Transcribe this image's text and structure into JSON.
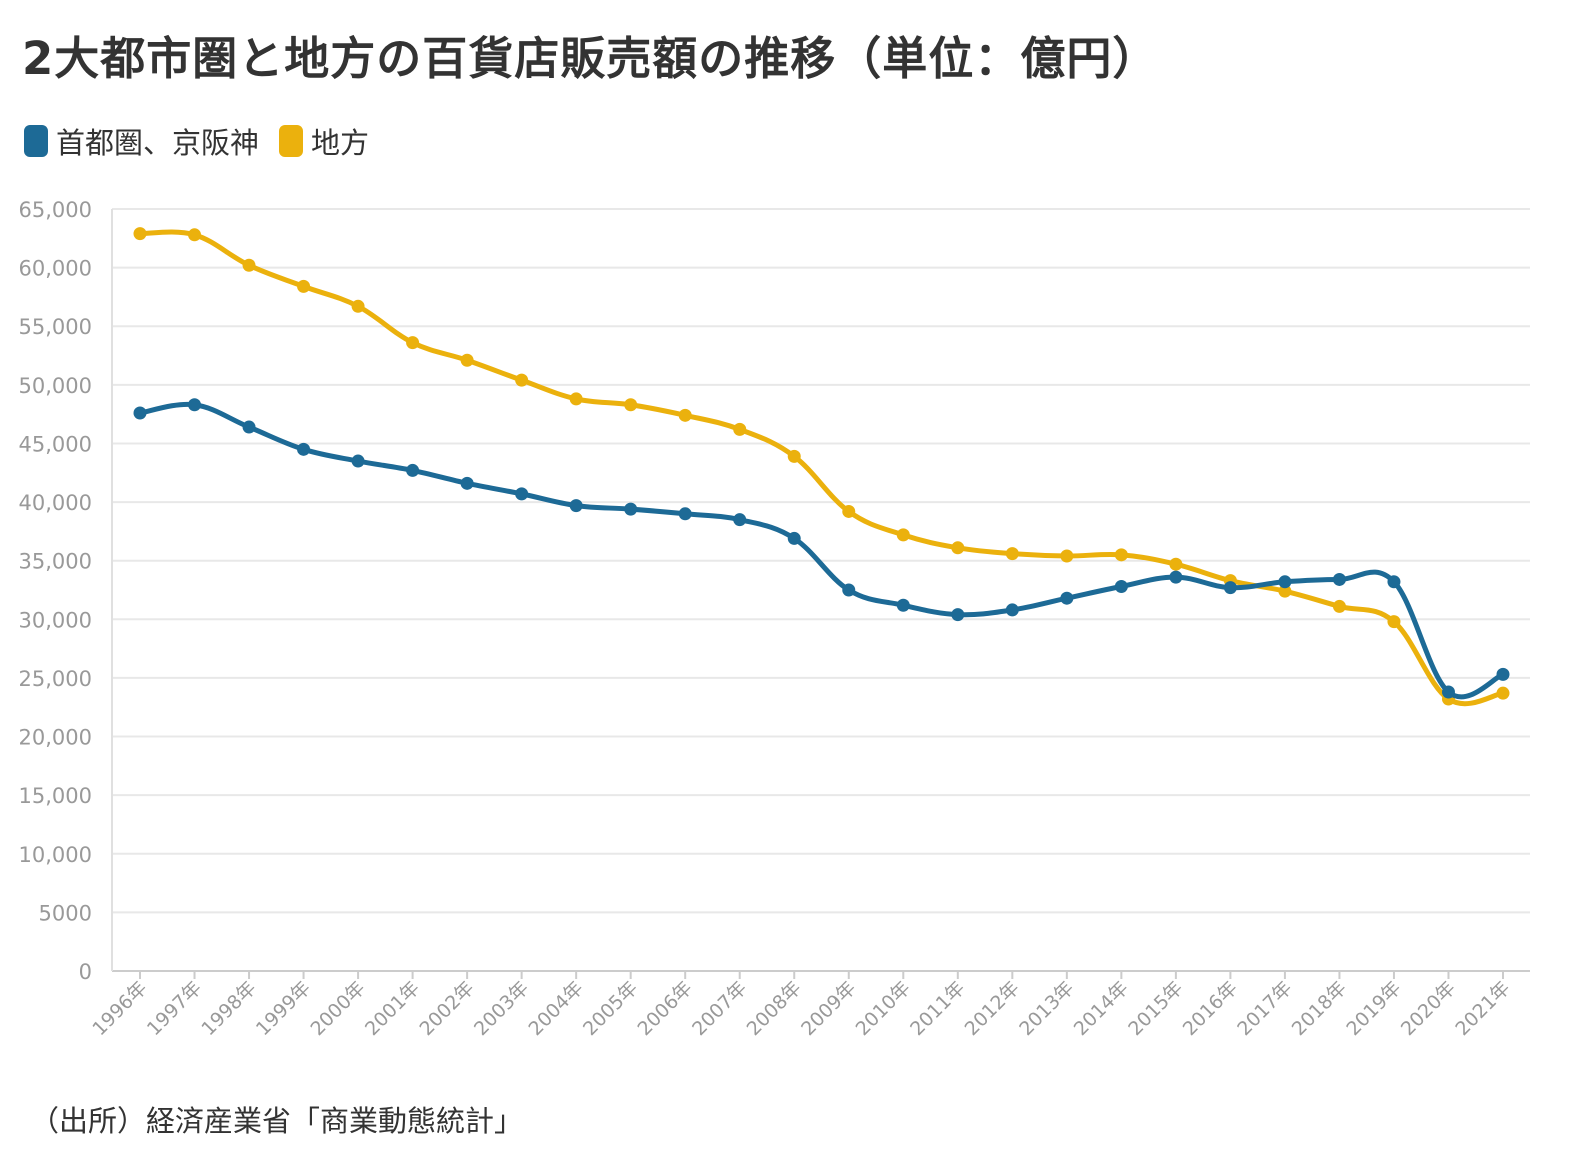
{
  "title": "2大都市圏と地方の百貨店販売額の推移（単位：億円）",
  "source": "（出所）経済産業省「商業動態統計」",
  "legend": [
    {
      "name": "首都圏、京阪神",
      "color": "#1d6a96"
    },
    {
      "name": "地方",
      "color": "#ebb10d"
    }
  ],
  "chart_data": {
    "type": "line",
    "x": [
      "1996年",
      "1997年",
      "1998年",
      "1999年",
      "2000年",
      "2001年",
      "2002年",
      "2003年",
      "2004年",
      "2005年",
      "2006年",
      "2007年",
      "2008年",
      "2009年",
      "2010年",
      "2011年",
      "2012年",
      "2013年",
      "2014年",
      "2015年",
      "2016年",
      "2017年",
      "2018年",
      "2019年",
      "2020年",
      "2021年"
    ],
    "series": [
      {
        "name": "首都圏、京阪神",
        "color": "#1d6a96",
        "values": [
          47600,
          48300,
          46400,
          44500,
          43500,
          42700,
          41600,
          40700,
          39700,
          39400,
          39000,
          38500,
          36900,
          32500,
          31200,
          30400,
          30800,
          31800,
          32800,
          33600,
          32700,
          33200,
          33400,
          33200,
          23800,
          25300
        ]
      },
      {
        "name": "地方",
        "color": "#ebb10d",
        "values": [
          62900,
          62800,
          60200,
          58400,
          56700,
          53600,
          52100,
          50400,
          48800,
          48300,
          47400,
          46200,
          43900,
          39200,
          37200,
          36100,
          35600,
          35400,
          35500,
          34700,
          33300,
          32400,
          31100,
          29800,
          23200,
          23700
        ]
      }
    ],
    "y_ticks": [
      0,
      5000,
      10000,
      15000,
      20000,
      25000,
      30000,
      35000,
      40000,
      45000,
      50000,
      55000,
      60000,
      65000
    ],
    "y_tick_labels": [
      "0",
      "5000",
      "10,000",
      "15,000",
      "20,000",
      "25,000",
      "30,000",
      "35,000",
      "40,000",
      "45,000",
      "50,000",
      "55,000",
      "60,000",
      "65,000"
    ],
    "ylim": [
      0,
      65000
    ],
    "grid": true,
    "legend_position": "top-left",
    "axis_color": "#999999",
    "grid_color": "#e8e8e8"
  }
}
